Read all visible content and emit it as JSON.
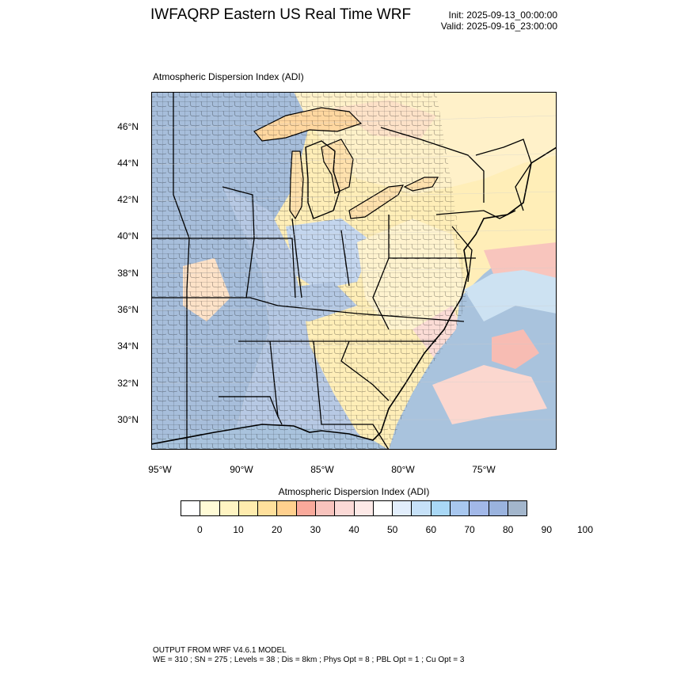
{
  "header": {
    "title": "IWFAQRP Eastern US Real Time WRF",
    "init": "Init: 2025-09-13_00:00:00",
    "valid": "Valid: 2025-09-16_23:00:00"
  },
  "map": {
    "field_title": "Atmospheric Dispersion Index   (ADI)",
    "lat_labels": [
      "46°N",
      "44°N",
      "42°N",
      "40°N",
      "38°N",
      "36°N",
      "34°N",
      "32°N",
      "30°N"
    ],
    "lon_labels": [
      "95°W",
      "90°W",
      "85°W",
      "80°W",
      "75°W"
    ]
  },
  "colorbar": {
    "title": "Atmospheric Dispersion Index  (ADI)",
    "ticks": [
      "0",
      "10",
      "20",
      "30",
      "40",
      "50",
      "60",
      "70",
      "80",
      "90",
      "100"
    ],
    "colors": [
      "#ffffff",
      "#fffbd6",
      "#fff4c2",
      "#ffecae",
      "#ffe09c",
      "#ffd08e",
      "#f9a99b",
      "#f8c3bd",
      "#fbd9d6",
      "#fde9e7",
      "#ffffff",
      "#e2eefc",
      "#c6e1f8",
      "#a9d8f6",
      "#a8c7ef",
      "#a2b8e8",
      "#9ab3de",
      "#a3b6cc"
    ]
  },
  "footer": {
    "line1": "OUTPUT FROM WRF V4.6.1 MODEL",
    "line2": "WE = 310 ; SN = 275 ; Levels = 38 ; Dis = 8km ; Phys Opt = 8 ; PBL Opt = 1 ; Cu Opt = 3"
  }
}
